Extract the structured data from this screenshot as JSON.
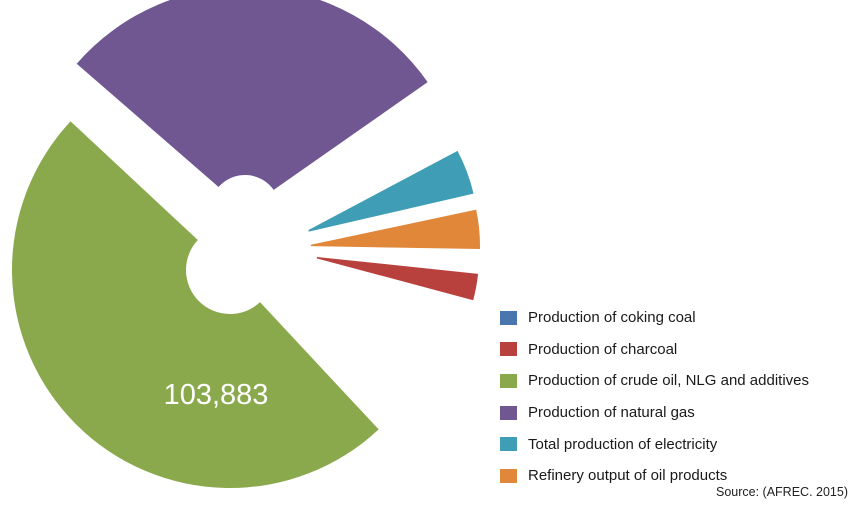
{
  "chart_data": {
    "type": "pie",
    "style": "exploded donut",
    "slices": [
      {
        "label": "Production of coking coal",
        "value": 0,
        "color": "#4a76b0"
      },
      {
        "label": "Production of charcoal",
        "value": 3850,
        "color": "#b9413d"
      },
      {
        "label": "Production of crude oil, NLG and additives",
        "value": 103883,
        "color": "#8aa94c"
      },
      {
        "label": "Production of natural gas",
        "value": 53900,
        "color": "#705791"
      },
      {
        "label": "Total production of electricity",
        "value": 6900,
        "color": "#3f9db5"
      },
      {
        "label": "Refinery output of oil products",
        "value": 5850,
        "color": "#e0873a"
      }
    ],
    "data_labels": [
      {
        "slice": "Production of crude oil, NLG and additives",
        "text": "103,883"
      }
    ],
    "legend": {
      "position": "bottom-right"
    },
    "source": "Source: (AFREC. 2015)"
  }
}
